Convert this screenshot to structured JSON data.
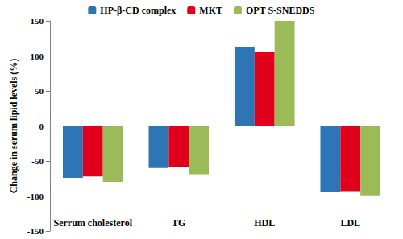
{
  "chart_data": {
    "type": "bar",
    "y_label": "Change in serum lipid levels (%)",
    "categories": [
      "Serrum cholesterol",
      "TG",
      "HDL",
      "LDL"
    ],
    "series": [
      {
        "name": "HP-β-CD complex",
        "color": "#2e75b6",
        "values": [
          -74,
          -60,
          113,
          -94
        ]
      },
      {
        "name": "MKT",
        "color": "#e0001b",
        "values": [
          -72,
          -58,
          106,
          -93
        ]
      },
      {
        "name": "OPT S-SNEDDS",
        "color": "#9bbb59",
        "values": [
          -80,
          -69,
          150,
          -99
        ]
      }
    ],
    "ylim": [
      -150,
      150
    ],
    "yticks": [
      -150,
      -100,
      -50,
      0,
      50,
      100,
      150
    ],
    "grid": false,
    "legend": "top"
  }
}
